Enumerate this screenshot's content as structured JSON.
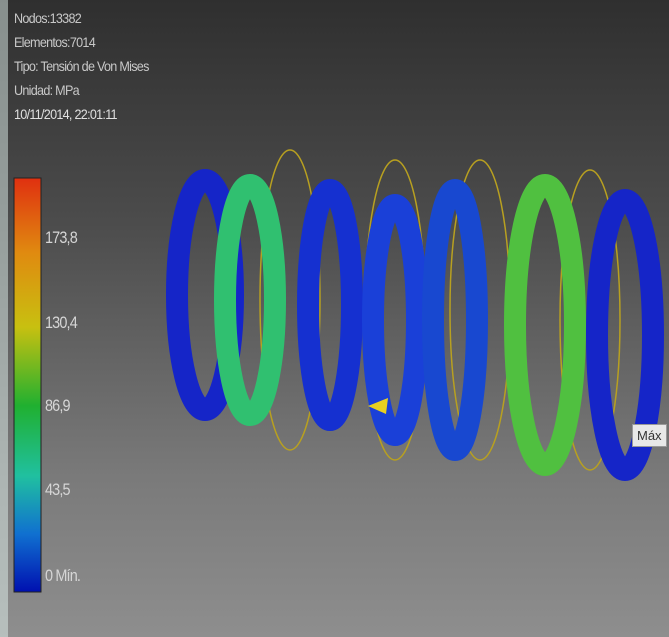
{
  "info": {
    "nodes": "Nodos:13382",
    "elements": "Elementos:7014",
    "type": "Tipo: Tensión de Von Mises",
    "unit": "Unidad: MPa",
    "timestamp": "10/11/2014, 22:01:11"
  },
  "legend": {
    "labels": [
      "173,8",
      "130,4",
      "86,9",
      "43,5",
      "0 Mín."
    ]
  },
  "probe": {
    "label": "Máx"
  }
}
